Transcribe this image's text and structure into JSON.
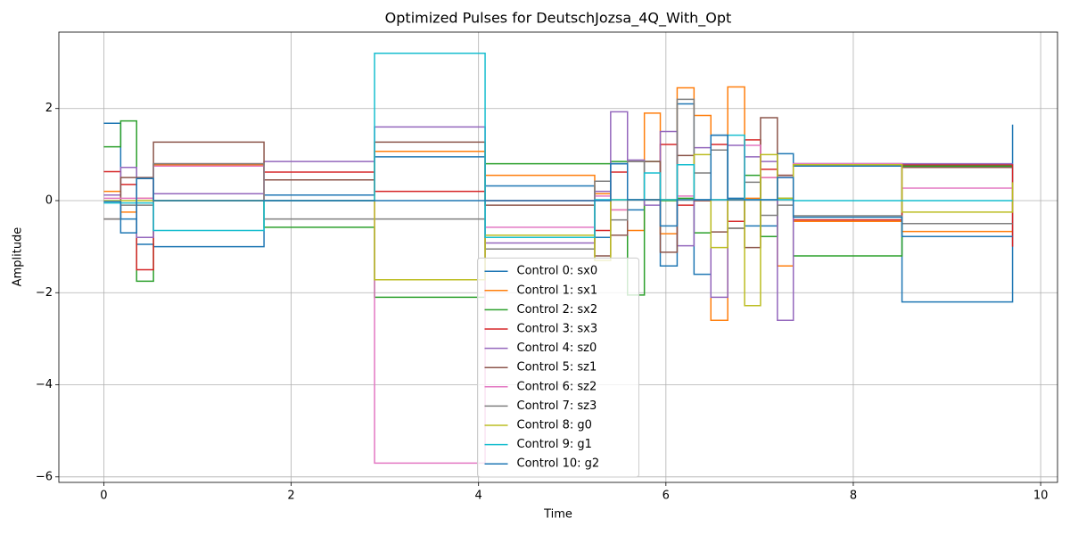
{
  "chart_data": {
    "type": "line",
    "step": "post",
    "title": "Optimized Pulses for DeutschJozsa_4Q_With_Opt",
    "x_label": "Time",
    "y_label": "Amplitude",
    "x": [
      0,
      0.18,
      0.35,
      0.53,
      1.71,
      2.89,
      4.07,
      5.24,
      5.41,
      5.59,
      5.77,
      5.94,
      6.12,
      6.3,
      6.48,
      6.66,
      6.84,
      7.01,
      7.19,
      7.36,
      8.52,
      9.7
    ],
    "series": [
      {
        "name": "Control 0: sx0",
        "color": "#1f77b4",
        "values": [
          1.68,
          -0.4,
          -0.95,
          -1.0,
          0.12,
          0.95,
          0.32,
          -0.8,
          0.8,
          -0.2,
          0.02,
          -1.42,
          2.1,
          -1.6,
          1.42,
          0.05,
          -0.55,
          -0.55,
          1.02,
          0.75,
          -2.2,
          1.65
        ]
      },
      {
        "name": "Control 1: sx1",
        "color": "#ff7f0e",
        "values": [
          0.2,
          -0.25,
          0.05,
          0.78,
          0,
          1.07,
          0.55,
          0.15,
          -0.2,
          -0.65,
          1.9,
          -0.72,
          2.45,
          1.85,
          -2.6,
          2.47,
          0.05,
          0.5,
          -1.42,
          -0.45,
          -0.67,
          -0.67
        ]
      },
      {
        "name": "Control 2: sx2",
        "color": "#2ca02c",
        "values": [
          1.17,
          1.73,
          -1.75,
          0,
          -0.58,
          -2.1,
          0.8,
          0.8,
          0.85,
          -2.05,
          0.85,
          0,
          0.05,
          -0.7,
          0.02,
          0.02,
          0.55,
          -0.78,
          0.05,
          -1.2,
          0.75,
          0.75
        ]
      },
      {
        "name": "Control 3: sx3",
        "color": "#d62728",
        "values": [
          0.63,
          0.35,
          -1.5,
          0.8,
          0.62,
          0.2,
          0,
          -0.65,
          0.62,
          0.02,
          0.02,
          1.22,
          -0.1,
          0,
          1.22,
          -0.45,
          1.32,
          0.68,
          0.55,
          -0.42,
          0.78,
          -1.0
        ]
      },
      {
        "name": "Control 4: sz0",
        "color": "#9467bd",
        "values": [
          0.12,
          0.72,
          -0.8,
          0.15,
          0.85,
          1.6,
          -0.92,
          0.2,
          1.93,
          0.88,
          -0.1,
          1.5,
          -0.98,
          1.15,
          -2.1,
          1.2,
          0.95,
          0.85,
          -2.6,
          0.8,
          0.8,
          0.8
        ]
      },
      {
        "name": "Control 5: sz1",
        "color": "#8c564b",
        "values": [
          -0.4,
          0.5,
          0.5,
          1.27,
          0.45,
          1.27,
          -0.1,
          -1.2,
          -0.75,
          0.85,
          0.85,
          -1.12,
          0.98,
          0,
          -0.68,
          -0.6,
          -1.02,
          1.8,
          0.55,
          0.8,
          0.72,
          0.72
        ]
      },
      {
        "name": "Control 6: sz2",
        "color": "#e377c2",
        "values": [
          0.05,
          0.05,
          0.05,
          0.75,
          0,
          -5.7,
          -0.58,
          0.1,
          -0.2,
          0.02,
          0.02,
          0.02,
          0.1,
          0.02,
          0.02,
          0.02,
          1.2,
          0.5,
          0.5,
          0.8,
          0.27,
          0.27
        ]
      },
      {
        "name": "Control 7: sz3",
        "color": "#7f7f7f",
        "values": [
          -0.4,
          -0.1,
          -0.1,
          0.8,
          -0.4,
          -0.4,
          -1.05,
          0.42,
          -0.42,
          0.85,
          0.02,
          0.02,
          2.2,
          0.6,
          1.1,
          -0.6,
          0.4,
          -0.32,
          -0.1,
          -0.33,
          -0.5,
          -0.5
        ]
      },
      {
        "name": "Control 8: g0",
        "color": "#bcbd22",
        "values": [
          0,
          0,
          0,
          0,
          0,
          -1.72,
          -0.75,
          -1.3,
          0.02,
          0.02,
          0.02,
          0.02,
          0.02,
          1.0,
          -1.02,
          0.02,
          -2.28,
          1.0,
          0.05,
          0.78,
          -0.25,
          0.4
        ]
      },
      {
        "name": "Control 9: g1",
        "color": "#17becf",
        "values": [
          -0.05,
          -0.05,
          -0.05,
          -0.65,
          0,
          3.2,
          -0.8,
          0.02,
          0.02,
          0.02,
          0.6,
          0.02,
          0.78,
          0.02,
          0.02,
          1.42,
          0.02,
          0.02,
          0.02,
          0,
          0,
          0
        ]
      },
      {
        "name": "Control 10: g2",
        "color": "#1f77b4",
        "values": [
          -0.02,
          -0.7,
          0.48,
          0,
          0,
          0,
          0,
          0,
          0.8,
          0.02,
          0.02,
          -0.55,
          0.02,
          0.02,
          1.42,
          0.02,
          0.02,
          0.02,
          0.5,
          -0.36,
          -0.78,
          -0.78
        ]
      }
    ],
    "xlim": [
      -0.48,
      10.18
    ],
    "ylim": [
      -6.12,
      3.66
    ],
    "xticks": [
      0,
      2,
      4,
      6,
      8,
      10
    ],
    "yticks": [
      {
        "value": -6,
        "label": "−6"
      },
      {
        "value": -4,
        "label": "−4"
      },
      {
        "value": -2,
        "label": "−2"
      },
      0,
      2
    ],
    "grid": true,
    "legend": "lower center"
  }
}
